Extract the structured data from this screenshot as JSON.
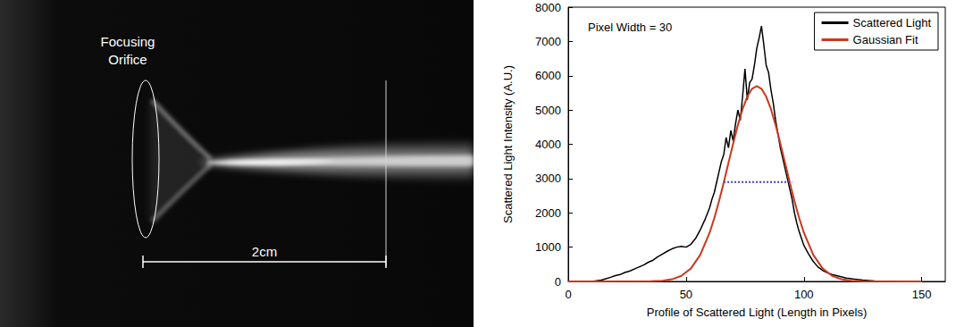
{
  "image": {
    "annotation": "Focusing Orifice",
    "scale_bar": "2cm"
  },
  "chart_data": {
    "type": "line",
    "annotation": "Pixel Width = 30",
    "x_label": "Profile of Scattered Light (Length in Pixels)",
    "y_label": "Scattered Light Intensity (A.U.)",
    "xlim": [
      0,
      160
    ],
    "xticks": [
      0,
      50,
      100,
      150
    ],
    "ylim": [
      0,
      8000
    ],
    "yticks": [
      0,
      1000,
      2000,
      3000,
      4000,
      5000,
      6000,
      7000,
      8000
    ],
    "grid": false,
    "legend": "upper right",
    "series": [
      {
        "name": "Scattered Light",
        "color": "#000000",
        "line_style": "solid",
        "x": [
          0,
          5,
          10,
          12,
          14,
          16,
          18,
          20,
          22,
          24,
          26,
          28,
          30,
          32,
          34,
          36,
          38,
          40,
          42,
          44,
          46,
          48,
          50,
          52,
          54,
          56,
          58,
          60,
          61,
          62,
          63,
          64,
          65,
          66,
          67,
          68,
          69,
          70,
          71,
          72,
          73,
          74,
          75,
          76,
          77,
          78,
          79,
          80,
          81,
          82,
          83,
          84,
          85,
          86,
          87,
          88,
          89,
          90,
          91,
          92,
          93,
          94,
          95,
          96,
          97,
          98,
          99,
          100,
          102,
          104,
          106,
          108,
          110,
          112,
          115,
          118,
          121,
          125,
          130,
          135,
          150
        ],
        "values": [
          0,
          0,
          0,
          20,
          40,
          80,
          120,
          170,
          200,
          260,
          300,
          360,
          420,
          480,
          560,
          620,
          720,
          800,
          880,
          950,
          1000,
          1020,
          1000,
          1080,
          1250,
          1500,
          1800,
          2150,
          2400,
          2600,
          2900,
          3200,
          3500,
          3700,
          4200,
          3900,
          4400,
          4100,
          4600,
          5000,
          4700,
          5400,
          6200,
          5300,
          5800,
          5900,
          6300,
          6800,
          7100,
          7450,
          6900,
          6300,
          6100,
          5600,
          5200,
          4700,
          4300,
          3900,
          3600,
          3300,
          3000,
          2700,
          2400,
          2000,
          1700,
          1450,
          1250,
          1050,
          800,
          580,
          420,
          320,
          250,
          200,
          150,
          100,
          70,
          40,
          10,
          0,
          0
        ]
      },
      {
        "name": "Gaussian Fit",
        "color": "#c8391f",
        "line_style": "solid",
        "x": [
          0,
          35,
          40,
          44,
          48,
          52,
          56,
          60,
          62,
          64,
          66,
          68,
          70,
          72,
          74,
          76,
          78,
          80,
          82,
          84,
          86,
          88,
          90,
          92,
          94,
          96,
          98,
          100,
          104,
          108,
          112,
          116,
          120,
          125,
          150
        ],
        "values": [
          0,
          5,
          22,
          63,
          163,
          375,
          771,
          1422,
          1851,
          2343,
          2886,
          3457,
          4028,
          4564,
          5030,
          5392,
          5621,
          5700,
          5621,
          5392,
          5030,
          4564,
          4028,
          3457,
          2886,
          2343,
          1851,
          1422,
          771,
          375,
          163,
          63,
          22,
          5,
          0
        ]
      }
    ],
    "fwhm_line": {
      "x": [
        66,
        95
      ],
      "y": 2900,
      "color": "#3b3bd6",
      "line_style": "dotted"
    }
  }
}
